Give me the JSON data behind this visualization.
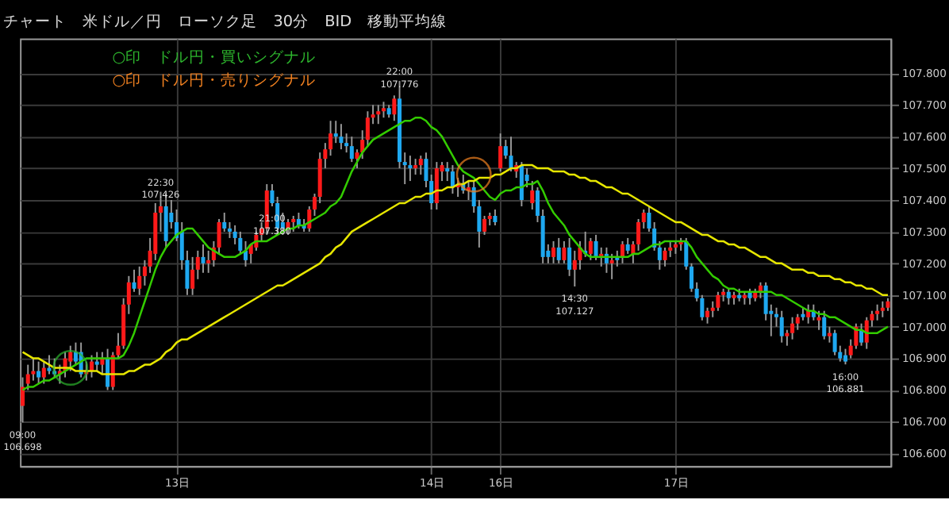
{
  "chart_data": {
    "type": "candlestick",
    "title": "チャート　米ドル／円　ローソク足　30分　BID　移動平均線",
    "categories": [
      null,
      null,
      null,
      null,
      null,
      null,
      null,
      null,
      null,
      null,
      null,
      null,
      null,
      null,
      null,
      null,
      null,
      null,
      null,
      null,
      null,
      null,
      null,
      null,
      null,
      null,
      null,
      null,
      null,
      "13日",
      null,
      null,
      null,
      null,
      null,
      null,
      null,
      null,
      null,
      null,
      null,
      null,
      null,
      null,
      null,
      null,
      null,
      null,
      null,
      null,
      null,
      null,
      null,
      null,
      null,
      null,
      null,
      null,
      null,
      null,
      null,
      null,
      null,
      null,
      null,
      null,
      null,
      null,
      null,
      null,
      null,
      null,
      null,
      null,
      null,
      null,
      null,
      "14日",
      null,
      null,
      null,
      null,
      null,
      null,
      null,
      null,
      null,
      null,
      null,
      null,
      "16日",
      null,
      null,
      null,
      null,
      null,
      null,
      null,
      null,
      null,
      null,
      null,
      null,
      null,
      null,
      null,
      null,
      null,
      null,
      null,
      null,
      null,
      null,
      null,
      null,
      null,
      null,
      null,
      null,
      null,
      null,
      null,
      null,
      "17日",
      null,
      null,
      null,
      null,
      null,
      null,
      null,
      null,
      null,
      null,
      null,
      null,
      null,
      null,
      null,
      null,
      null,
      null,
      null,
      null,
      null,
      null,
      null,
      null,
      null,
      null,
      null,
      null,
      null,
      null,
      null,
      null,
      null,
      null,
      null,
      null,
      null,
      null,
      null,
      null
    ],
    "ohlc": [
      [
        106.75,
        106.84,
        106.698,
        106.81
      ],
      [
        106.82,
        106.88,
        106.8,
        106.85
      ],
      [
        106.85,
        106.9,
        106.83,
        106.86
      ],
      [
        106.86,
        106.89,
        106.82,
        106.84
      ],
      [
        106.84,
        106.89,
        106.82,
        106.87
      ],
      [
        106.87,
        106.91,
        106.85,
        106.86
      ],
      [
        106.86,
        106.9,
        106.84,
        106.85
      ],
      [
        106.85,
        106.88,
        106.82,
        106.86
      ],
      [
        106.86,
        106.92,
        106.84,
        106.9
      ],
      [
        106.89,
        106.94,
        106.86,
        106.92
      ],
      [
        106.92,
        106.95,
        106.88,
        106.89
      ],
      [
        106.92,
        106.95,
        106.84,
        106.85
      ],
      [
        106.85,
        106.89,
        106.83,
        106.86
      ],
      [
        106.86,
        106.91,
        106.84,
        106.89
      ],
      [
        106.89,
        106.92,
        106.86,
        106.88
      ],
      [
        106.88,
        106.92,
        106.85,
        106.9
      ],
      [
        106.9,
        106.93,
        106.8,
        106.81
      ],
      [
        106.81,
        106.92,
        106.8,
        106.91
      ],
      [
        106.91,
        106.98,
        106.9,
        106.94
      ],
      [
        106.94,
        107.09,
        106.93,
        107.07
      ],
      [
        107.07,
        107.16,
        107.04,
        107.14
      ],
      [
        107.14,
        107.18,
        107.11,
        107.12
      ],
      [
        107.12,
        107.19,
        107.1,
        107.16
      ],
      [
        107.16,
        107.21,
        107.13,
        107.19
      ],
      [
        107.19,
        107.28,
        107.17,
        107.24
      ],
      [
        107.23,
        107.39,
        107.21,
        107.36
      ],
      [
        107.36,
        107.426,
        107.3,
        107.38
      ],
      [
        107.38,
        107.42,
        107.25,
        107.27
      ],
      [
        107.36,
        107.4,
        107.31,
        107.33
      ],
      [
        107.33,
        107.37,
        107.27,
        107.28
      ],
      [
        107.3,
        107.33,
        107.18,
        107.21
      ],
      [
        107.21,
        107.24,
        107.1,
        107.12
      ],
      [
        107.12,
        107.22,
        107.1,
        107.18
      ],
      [
        107.18,
        107.24,
        107.15,
        107.22
      ],
      [
        107.22,
        107.26,
        107.17,
        107.2
      ],
      [
        107.2,
        107.24,
        107.17,
        107.21
      ],
      [
        107.21,
        107.27,
        107.19,
        107.25
      ],
      [
        107.25,
        107.34,
        107.23,
        107.33
      ],
      [
        107.33,
        107.36,
        107.3,
        107.31
      ],
      [
        107.31,
        107.33,
        107.28,
        107.3
      ],
      [
        107.3,
        107.32,
        107.26,
        107.28
      ],
      [
        107.28,
        107.3,
        107.23,
        107.24
      ],
      [
        107.24,
        107.27,
        107.19,
        107.21
      ],
      [
        107.23,
        107.26,
        107.2,
        107.26
      ],
      [
        107.25,
        107.3,
        107.24,
        107.29
      ],
      [
        107.29,
        107.33,
        107.27,
        107.31
      ],
      [
        107.31,
        107.45,
        107.29,
        107.43
      ],
      [
        107.43,
        107.45,
        107.38,
        107.39
      ],
      [
        107.39,
        107.41,
        107.29,
        107.31
      ],
      [
        107.33,
        107.36,
        107.29,
        107.31
      ],
      [
        107.31,
        107.34,
        107.29,
        107.33
      ],
      [
        107.33,
        107.35,
        107.3,
        107.34
      ],
      [
        107.34,
        107.36,
        107.31,
        107.32
      ],
      [
        107.32,
        107.34,
        107.3,
        107.31
      ],
      [
        107.31,
        107.38,
        107.3,
        107.37
      ],
      [
        107.37,
        107.42,
        107.35,
        107.41
      ],
      [
        107.41,
        107.55,
        107.39,
        107.53
      ],
      [
        107.53,
        107.58,
        107.5,
        107.56
      ],
      [
        107.56,
        107.65,
        107.54,
        107.61
      ],
      [
        107.61,
        107.65,
        107.58,
        107.6
      ],
      [
        107.6,
        107.64,
        107.56,
        107.58
      ],
      [
        107.58,
        107.61,
        107.55,
        107.57
      ],
      [
        107.57,
        107.6,
        107.52,
        107.53
      ],
      [
        107.53,
        107.56,
        107.5,
        107.55
      ],
      [
        107.55,
        107.62,
        107.53,
        107.59
      ],
      [
        107.59,
        107.68,
        107.57,
        107.66
      ],
      [
        107.66,
        107.7,
        107.64,
        107.67
      ],
      [
        107.67,
        107.7,
        107.64,
        107.68
      ],
      [
        107.68,
        107.71,
        107.66,
        107.69
      ],
      [
        107.69,
        107.7,
        107.66,
        107.67
      ],
      [
        107.67,
        107.73,
        107.65,
        107.72
      ],
      [
        107.72,
        107.776,
        107.5,
        107.52
      ],
      [
        107.52,
        107.55,
        107.45,
        107.51
      ],
      [
        107.51,
        107.54,
        107.46,
        107.5
      ],
      [
        107.5,
        107.53,
        107.48,
        107.51
      ],
      [
        107.51,
        107.54,
        107.48,
        107.53
      ],
      [
        107.53,
        107.55,
        107.44,
        107.46
      ],
      [
        107.46,
        107.48,
        107.37,
        107.39
      ],
      [
        107.39,
        107.52,
        107.37,
        107.5
      ],
      [
        107.49,
        107.52,
        107.46,
        107.51
      ],
      [
        107.5,
        107.52,
        107.46,
        107.49
      ],
      [
        107.49,
        107.51,
        107.42,
        107.44
      ],
      [
        107.44,
        107.47,
        107.41,
        107.45
      ],
      [
        107.45,
        107.48,
        107.42,
        107.43
      ],
      [
        107.43,
        107.46,
        107.4,
        107.44
      ],
      [
        107.44,
        107.46,
        107.36,
        107.38
      ],
      [
        107.38,
        107.4,
        107.25,
        107.3
      ],
      [
        107.3,
        107.35,
        107.29,
        107.34
      ],
      [
        107.34,
        107.36,
        107.32,
        107.35
      ],
      [
        107.35,
        107.37,
        107.32,
        107.33
      ],
      [
        107.5,
        107.61,
        107.49,
        107.57
      ],
      [
        107.57,
        107.59,
        107.53,
        107.54
      ],
      [
        107.54,
        107.6,
        107.49,
        107.5
      ],
      [
        107.49,
        107.52,
        107.47,
        107.51
      ],
      [
        107.51,
        107.52,
        107.38,
        107.4
      ],
      [
        107.48,
        107.5,
        107.44,
        107.46
      ],
      [
        107.39,
        107.46,
        107.37,
        107.43
      ],
      [
        107.43,
        107.44,
        107.33,
        107.35
      ],
      [
        107.35,
        107.37,
        107.2,
        107.22
      ],
      [
        107.24,
        107.26,
        107.2,
        107.22
      ],
      [
        107.22,
        107.27,
        107.2,
        107.25
      ],
      [
        107.25,
        107.28,
        107.2,
        107.21
      ],
      [
        107.21,
        107.27,
        107.2,
        107.25
      ],
      [
        107.25,
        107.28,
        107.16,
        107.18
      ],
      [
        107.18,
        107.24,
        107.127,
        107.21
      ],
      [
        107.21,
        107.27,
        107.18,
        107.25
      ],
      [
        107.24,
        107.3,
        107.22,
        107.23
      ],
      [
        107.23,
        107.28,
        107.21,
        107.27
      ],
      [
        107.27,
        107.29,
        107.21,
        107.22
      ],
      [
        107.22,
        107.25,
        107.19,
        107.23
      ],
      [
        107.23,
        107.25,
        107.17,
        107.2
      ],
      [
        107.2,
        107.23,
        107.15,
        107.21
      ],
      [
        107.22,
        107.24,
        107.19,
        107.21
      ],
      [
        107.22,
        107.27,
        107.2,
        107.26
      ],
      [
        107.26,
        107.28,
        107.23,
        107.24
      ],
      [
        107.23,
        107.27,
        107.2,
        107.26
      ],
      [
        107.26,
        107.34,
        107.24,
        107.33
      ],
      [
        107.33,
        107.37,
        107.31,
        107.36
      ],
      [
        107.36,
        107.38,
        107.3,
        107.31
      ],
      [
        107.31,
        107.33,
        107.24,
        107.25
      ],
      [
        107.25,
        107.27,
        107.18,
        107.21
      ],
      [
        107.21,
        107.25,
        107.19,
        107.24
      ],
      [
        107.24,
        107.27,
        107.22,
        107.25
      ],
      [
        107.25,
        107.27,
        107.23,
        107.26
      ],
      [
        107.26,
        107.28,
        107.24,
        107.27
      ],
      [
        107.27,
        107.28,
        107.18,
        107.19
      ],
      [
        107.19,
        107.2,
        107.11,
        107.12
      ],
      [
        107.12,
        107.14,
        107.08,
        107.09
      ],
      [
        107.09,
        107.1,
        107.02,
        107.03
      ],
      [
        107.03,
        107.06,
        107.01,
        107.05
      ],
      [
        107.05,
        107.08,
        107.03,
        107.06
      ],
      [
        107.06,
        107.11,
        107.05,
        107.1
      ],
      [
        107.1,
        107.12,
        107.08,
        107.11
      ],
      [
        107.11,
        107.12,
        107.07,
        107.09
      ],
      [
        107.09,
        107.11,
        107.07,
        107.1
      ],
      [
        107.1,
        107.12,
        107.08,
        107.09
      ],
      [
        107.09,
        107.11,
        107.07,
        107.1
      ],
      [
        107.11,
        107.12,
        107.07,
        107.09
      ],
      [
        107.09,
        107.12,
        107.08,
        107.11
      ],
      [
        107.11,
        107.14,
        107.09,
        107.13
      ],
      [
        107.13,
        107.14,
        107.02,
        107.04
      ],
      [
        107.05,
        107.07,
        106.97,
        107.04
      ],
      [
        107.04,
        107.06,
        107.0,
        107.03
      ],
      [
        107.03,
        107.05,
        106.95,
        106.97
      ],
      [
        106.97,
        106.99,
        106.94,
        106.98
      ],
      [
        106.98,
        107.03,
        106.96,
        107.01
      ],
      [
        107.01,
        107.04,
        106.99,
        107.03
      ],
      [
        107.04,
        107.06,
        107.02,
        107.03
      ],
      [
        107.03,
        107.07,
        107.01,
        107.05
      ],
      [
        107.05,
        107.07,
        107.02,
        107.03
      ],
      [
        107.02,
        107.05,
        106.99,
        107.03
      ],
      [
        107.03,
        107.05,
        106.96,
        106.97
      ],
      [
        106.97,
        107.0,
        106.95,
        106.98
      ],
      [
        106.98,
        106.99,
        106.91,
        106.92
      ],
      [
        106.92,
        106.94,
        106.89,
        106.9
      ],
      [
        106.91,
        106.93,
        106.881,
        106.89
      ],
      [
        106.91,
        106.96,
        106.9,
        106.94
      ],
      [
        106.94,
        107.01,
        106.93,
        107.0
      ],
      [
        106.99,
        107.01,
        106.94,
        106.95
      ],
      [
        106.95,
        107.03,
        106.93,
        107.02
      ],
      [
        107.02,
        107.05,
        107.0,
        107.04
      ],
      [
        107.04,
        107.07,
        107.02,
        107.05
      ],
      [
        107.05,
        107.08,
        107.03,
        107.06
      ],
      [
        107.06,
        107.09,
        107.05,
        107.08
      ]
    ],
    "colors": [
      "#ff1a1a",
      "#ff1a1a",
      "#ff1a1a",
      "#1ea8f0",
      "#ff1a1a",
      "#1ea8f0",
      "#1ea8f0",
      "#ff1a1a",
      "#ff1a1a",
      "#ff1a1a",
      "#1ea8f0",
      "#1ea8f0",
      "#ff1a1a",
      "#ff1a1a",
      "#1ea8f0",
      "#ff1a1a",
      "#1ea8f0",
      "#ff1a1a",
      "#ff1a1a",
      "#ff1a1a",
      "#ff1a1a",
      "#1ea8f0",
      "#ff1a1a",
      "#ff1a1a",
      "#ff1a1a",
      "#ff1a1a",
      "#ff1a1a",
      "#1ea8f0",
      "#1ea8f0",
      "#1ea8f0",
      "#1ea8f0",
      "#1ea8f0",
      "#ff1a1a",
      "#ff1a1a",
      "#1ea8f0",
      "#ff1a1a",
      "#ff1a1a",
      "#ff1a1a",
      "#1ea8f0",
      "#1ea8f0",
      "#1ea8f0",
      "#1ea8f0",
      "#1ea8f0",
      "#ff1a1a",
      "#ff1a1a",
      "#ff1a1a",
      "#ff1a1a",
      "#1ea8f0",
      "#1ea8f0",
      "#1ea8f0",
      "#ff1a1a",
      "#ff1a1a",
      "#1ea8f0",
      "#1ea8f0",
      "#ff1a1a",
      "#ff1a1a",
      "#ff1a1a",
      "#ff1a1a",
      "#ff1a1a",
      "#1ea8f0",
      "#1ea8f0",
      "#1ea8f0",
      "#1ea8f0",
      "#ff1a1a",
      "#ff1a1a",
      "#ff1a1a",
      "#ff1a1a",
      "#ff1a1a",
      "#ff1a1a",
      "#1ea8f0",
      "#ff1a1a",
      "#1ea8f0",
      "#1ea8f0",
      "#1ea8f0",
      "#ff1a1a",
      "#ff1a1a",
      "#1ea8f0",
      "#1ea8f0",
      "#ff1a1a",
      "#ff1a1a",
      "#1ea8f0",
      "#1ea8f0",
      "#ff1a1a",
      "#1ea8f0",
      "#ff1a1a",
      "#1ea8f0",
      "#1ea8f0",
      "#ff1a1a",
      "#ff1a1a",
      "#1ea8f0",
      "#ff1a1a",
      "#1ea8f0",
      "#1ea8f0",
      "#ff1a1a",
      "#1ea8f0",
      "#1ea8f0",
      "#ff1a1a",
      "#1ea8f0",
      "#1ea8f0",
      "#1ea8f0",
      "#ff1a1a",
      "#1ea8f0",
      "#ff1a1a",
      "#1ea8f0",
      "#ff1a1a",
      "#ff1a1a",
      "#1ea8f0",
      "#ff1a1a",
      "#1ea8f0",
      "#ff1a1a",
      "#1ea8f0",
      "#ff1a1a",
      "#1ea8f0",
      "#ff1a1a",
      "#1ea8f0",
      "#ff1a1a",
      "#ff1a1a",
      "#ff1a1a",
      "#1ea8f0",
      "#1ea8f0",
      "#1ea8f0",
      "#ff1a1a",
      "#ff1a1a",
      "#ff1a1a",
      "#ff1a1a",
      "#1ea8f0",
      "#1ea8f0",
      "#1ea8f0",
      "#1ea8f0",
      "#ff1a1a",
      "#ff1a1a",
      "#ff1a1a",
      "#ff1a1a",
      "#1ea8f0",
      "#ff1a1a",
      "#1ea8f0",
      "#ff1a1a",
      "#1ea8f0",
      "#ff1a1a",
      "#ff1a1a",
      "#1ea8f0",
      "#1ea8f0",
      "#1ea8f0",
      "#1ea8f0",
      "#ff1a1a",
      "#ff1a1a",
      "#ff1a1a",
      "#1ea8f0",
      "#ff1a1a",
      "#1ea8f0",
      "#ff1a1a",
      "#1ea8f0",
      "#ff1a1a",
      "#1ea8f0",
      "#1ea8f0",
      "#1ea8f0",
      "#ff1a1a",
      "#ff1a1a",
      "#1ea8f0",
      "#ff1a1a",
      "#ff1a1a",
      "#ff1a1a",
      "#ff1a1a",
      "#ff1a1a"
    ],
    "ylim": [
      106.56,
      107.91
    ],
    "yticks": [
      {
        "value": 106.6,
        "label": "106.600"
      },
      {
        "value": 106.7,
        "label": "106.700"
      },
      {
        "value": 106.8,
        "label": "106.800"
      },
      {
        "value": 106.9,
        "label": "106.900"
      },
      {
        "value": 107.0,
        "label": "107.000"
      },
      {
        "value": 107.1,
        "label": "107.100"
      },
      {
        "value": 107.2,
        "label": "107.200"
      },
      {
        "value": 107.3,
        "label": "107.300"
      },
      {
        "value": 107.4,
        "label": "107.400"
      },
      {
        "value": 107.5,
        "label": "107.500"
      },
      {
        "value": 107.6,
        "label": "107.600"
      },
      {
        "value": 107.7,
        "label": "107.700"
      },
      {
        "value": 107.8,
        "label": "107.800"
      }
    ],
    "grid": true,
    "legend": "top left",
    "series": [
      {
        "type": "line",
        "color": "#33cc00",
        "values": [
          106.8,
          106.81,
          106.81,
          106.82,
          106.83,
          106.83,
          106.84,
          106.85,
          106.86,
          106.87,
          106.88,
          106.89,
          106.9,
          106.9,
          106.9,
          106.9,
          106.9,
          106.9,
          106.9,
          106.91,
          106.94,
          106.98,
          107.03,
          107.08,
          107.13,
          107.18,
          107.22,
          107.25,
          107.27,
          107.29,
          107.3,
          107.31,
          107.31,
          107.29,
          107.27,
          107.25,
          107.24,
          107.23,
          107.22,
          107.22,
          107.22,
          107.23,
          107.24,
          107.26,
          107.27,
          107.27,
          107.27,
          107.28,
          107.29,
          107.3,
          107.31,
          107.31,
          107.32,
          107.32,
          107.33,
          107.34,
          107.35,
          107.36,
          107.38,
          107.39,
          107.41,
          107.45,
          107.49,
          107.52,
          107.55,
          107.57,
          107.59,
          107.6,
          107.61,
          107.62,
          107.63,
          107.64,
          107.65,
          107.65,
          107.66,
          107.66,
          107.65,
          107.63,
          107.62,
          107.6,
          107.57,
          107.54,
          107.51,
          107.49,
          107.48,
          107.47,
          107.45,
          107.43,
          107.41,
          107.4,
          107.42,
          107.43,
          107.43,
          107.44,
          107.44,
          107.45,
          107.45,
          107.46,
          107.43,
          107.39,
          107.36,
          107.34,
          107.32,
          107.29,
          107.27,
          107.25,
          107.23,
          107.22,
          107.22,
          107.22,
          107.22,
          107.22,
          107.22,
          107.22,
          107.22,
          107.23,
          107.23,
          107.24,
          107.25,
          107.26,
          107.26,
          107.27,
          107.27,
          107.27,
          107.27,
          107.27,
          107.25,
          107.22,
          107.2,
          107.18,
          107.16,
          107.15,
          107.13,
          107.12,
          107.12,
          107.11,
          107.11,
          107.11,
          107.11,
          107.11,
          107.11,
          107.11,
          107.1,
          107.1,
          107.09,
          107.08,
          107.07,
          107.06,
          107.05,
          107.05,
          107.04,
          107.04,
          107.03,
          107.03,
          107.02,
          107.01,
          107.0,
          106.99,
          106.99,
          106.98,
          106.98,
          106.98,
          106.99,
          107.0
        ]
      },
      {
        "type": "line",
        "color": "#e6e600",
        "values": [
          106.92,
          106.91,
          106.9,
          106.9,
          106.89,
          106.88,
          106.87,
          106.87,
          106.87,
          106.87,
          106.86,
          106.86,
          106.86,
          106.86,
          106.86,
          106.85,
          106.85,
          106.85,
          106.85,
          106.85,
          106.86,
          106.86,
          106.87,
          106.88,
          106.88,
          106.89,
          106.9,
          106.92,
          106.93,
          106.95,
          106.96,
          106.96,
          106.97,
          106.98,
          106.99,
          107.0,
          107.01,
          107.02,
          107.03,
          107.04,
          107.05,
          107.06,
          107.07,
          107.08,
          107.09,
          107.1,
          107.11,
          107.12,
          107.13,
          107.13,
          107.14,
          107.15,
          107.16,
          107.17,
          107.18,
          107.19,
          107.2,
          107.22,
          107.23,
          107.25,
          107.26,
          107.28,
          107.3,
          107.31,
          107.32,
          107.33,
          107.34,
          107.35,
          107.36,
          107.37,
          107.38,
          107.39,
          107.39,
          107.4,
          107.41,
          107.41,
          107.42,
          107.42,
          107.43,
          107.43,
          107.44,
          107.44,
          107.45,
          107.45,
          107.46,
          107.46,
          107.47,
          107.47,
          107.47,
          107.48,
          107.48,
          107.49,
          107.5,
          107.5,
          107.51,
          107.51,
          107.51,
          107.5,
          107.5,
          107.5,
          107.49,
          107.49,
          107.49,
          107.48,
          107.48,
          107.47,
          107.47,
          107.46,
          107.46,
          107.45,
          107.44,
          107.44,
          107.43,
          107.42,
          107.42,
          107.41,
          107.4,
          107.39,
          107.38,
          107.37,
          107.36,
          107.35,
          107.34,
          107.33,
          107.33,
          107.32,
          107.31,
          107.3,
          107.29,
          107.29,
          107.28,
          107.27,
          107.27,
          107.26,
          107.26,
          107.25,
          107.25,
          107.24,
          107.23,
          107.22,
          107.22,
          107.21,
          107.2,
          107.2,
          107.19,
          107.18,
          107.18,
          107.18,
          107.17,
          107.17,
          107.16,
          107.16,
          107.16,
          107.15,
          107.15,
          107.14,
          107.14,
          107.13,
          107.13,
          107.12,
          107.12,
          107.11,
          107.1,
          107.1
        ]
      },
      {
        "type": "scatter",
        "name": "○印　ドル円・買いシグナル",
        "color": "#2db52d",
        "marker": "circle",
        "values": [
          null,
          null,
          null,
          null,
          null,
          null,
          null,
          null,
          null,
          106.87,
          null,
          null,
          null,
          null,
          null,
          null,
          null,
          null,
          null,
          null,
          null,
          null,
          null,
          null,
          null,
          null,
          null,
          null,
          null,
          null,
          null,
          null,
          null,
          null,
          null,
          null,
          null,
          null,
          null,
          null,
          null,
          null,
          null,
          null,
          null,
          null,
          null,
          null,
          null,
          null,
          null,
          null,
          null,
          null,
          null,
          null,
          null,
          null,
          null,
          null,
          null,
          null,
          null,
          null,
          null,
          null,
          null,
          null,
          null,
          null,
          null,
          null,
          null,
          null,
          null,
          null,
          null,
          null,
          null,
          null,
          null,
          null,
          null,
          null,
          null,
          null,
          null,
          null,
          null,
          null,
          null,
          null,
          null,
          null,
          null,
          null,
          null,
          null,
          null,
          null,
          null,
          null,
          null,
          null,
          null,
          null,
          null,
          null,
          null,
          null,
          null,
          null,
          null,
          null,
          null,
          null,
          null,
          null,
          null,
          null,
          null,
          null,
          null,
          null,
          null,
          null,
          null,
          null,
          null,
          null,
          null,
          null,
          null,
          null,
          null,
          null,
          null,
          null,
          null,
          null,
          null,
          null,
          null,
          null,
          null,
          null,
          null,
          null,
          null,
          null,
          null,
          null,
          null,
          null,
          null,
          null,
          null,
          null,
          null,
          null,
          null,
          null,
          null,
          null
        ]
      },
      {
        "type": "scatter",
        "name": "○印　ドル円・売りシグナル",
        "color": "#f08020",
        "marker": "circle",
        "values": [
          null,
          null,
          null,
          null,
          null,
          null,
          null,
          null,
          null,
          null,
          null,
          null,
          null,
          null,
          null,
          null,
          null,
          null,
          null,
          null,
          null,
          null,
          null,
          null,
          null,
          null,
          null,
          null,
          null,
          null,
          null,
          null,
          null,
          null,
          null,
          null,
          null,
          null,
          null,
          null,
          null,
          null,
          null,
          null,
          null,
          null,
          null,
          null,
          null,
          null,
          null,
          null,
          null,
          null,
          null,
          null,
          null,
          null,
          null,
          null,
          null,
          null,
          null,
          null,
          null,
          null,
          null,
          null,
          null,
          null,
          null,
          null,
          null,
          null,
          null,
          null,
          null,
          null,
          null,
          null,
          null,
          null,
          null,
          null,
          null,
          107.48,
          null,
          null,
          null,
          null,
          null,
          null,
          null,
          null,
          null,
          null,
          null,
          null,
          null,
          null,
          null,
          null,
          null,
          null,
          null,
          null,
          null,
          null,
          null,
          null,
          null,
          null,
          null,
          null,
          null,
          null,
          null,
          null,
          null,
          null,
          null,
          null,
          null,
          null,
          null,
          null,
          null,
          null,
          null,
          null,
          null,
          null,
          null,
          null,
          null,
          null,
          null,
          null,
          null,
          null,
          null,
          null,
          null,
          null,
          null,
          null,
          null,
          null,
          null,
          null,
          null,
          null,
          null,
          null,
          null,
          null,
          null,
          null,
          null,
          null,
          null,
          null,
          null,
          null
        ]
      }
    ],
    "annotations": [
      {
        "text": "09:00\n106.698",
        "y": 106.698
      },
      {
        "text": "22:30\n107.426",
        "y": 107.426
      },
      {
        "text": "22:00\n107.776",
        "y": 107.776
      },
      {
        "text": "14:30\n107.127",
        "y": 107.127
      },
      {
        "text": "21:00\n107.380",
        "y": 107.38
      },
      {
        "text": "16:00\n106.881",
        "y": 106.881
      }
    ]
  }
}
